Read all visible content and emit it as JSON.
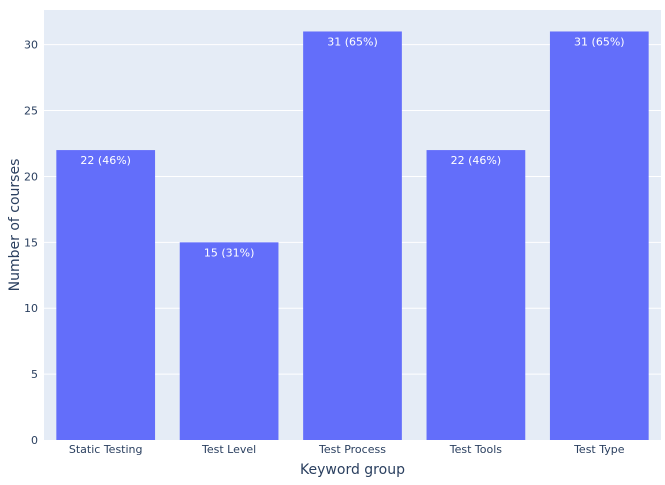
{
  "chart_data": {
    "type": "bar",
    "title": "",
    "xlabel": "Keyword group",
    "ylabel": "Number of courses",
    "categories": [
      "Static Testing",
      "Test Level",
      "Test Process",
      "Test Tools",
      "Test Type"
    ],
    "values": [
      22,
      15,
      31,
      22,
      31
    ],
    "data_labels": [
      "22 (46%)",
      "15 (31%)",
      "31 (65%)",
      "22 (46%)",
      "31 (65%)"
    ],
    "yticks": [
      0,
      5,
      10,
      15,
      20,
      25,
      30
    ],
    "ylim": [
      0,
      32.63
    ],
    "grid": true,
    "legend": "none",
    "colors": {
      "bar": "#636efa",
      "plot_background": "#e5ecf6",
      "gridline": "#ffffff",
      "axis_text": "#2a3f5f",
      "data_label": "#ffffff"
    }
  }
}
